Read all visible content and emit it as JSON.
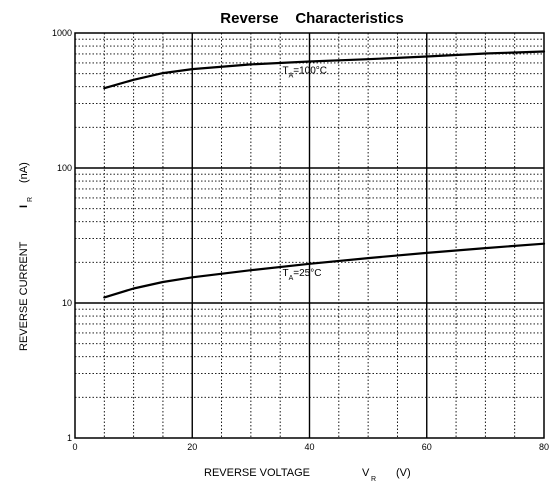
{
  "chart_data": {
    "type": "line",
    "title": "Reverse    Characteristics",
    "xlabel": {
      "main": "REVERSE VOLTAGE",
      "symbol": "V",
      "subscript": "R",
      "unit": "(V)"
    },
    "ylabel": {
      "main": "REVERSE CURRENT",
      "symbol": "I",
      "subscript": "R",
      "unit": "(nA)"
    },
    "xlim": [
      0,
      80
    ],
    "ylim": [
      1,
      1000
    ],
    "yscale": "log",
    "grid": true,
    "x_ticks": [
      "0",
      "20",
      "40",
      "60",
      "80"
    ],
    "y_ticks": [
      "1",
      "10",
      "100",
      "1000"
    ],
    "series": [
      {
        "name": "T = 100°C",
        "label": {
          "T": "T",
          "sub": "A",
          "value": "=100°C"
        },
        "x": [
          5,
          10,
          15,
          20,
          30,
          40,
          50,
          60,
          70,
          80
        ],
        "y": [
          390,
          450,
          505,
          540,
          585,
          615,
          640,
          670,
          705,
          730
        ]
      },
      {
        "name": "T = 25°C",
        "label": {
          "T": "T",
          "sub": "A",
          "value": "=25°C"
        },
        "x": [
          5,
          10,
          15,
          20,
          30,
          40,
          50,
          60,
          70,
          80
        ],
        "y": [
          11,
          12.8,
          14.3,
          15.5,
          17.5,
          19.5,
          21.5,
          23.5,
          25.5,
          27.5
        ]
      }
    ]
  }
}
